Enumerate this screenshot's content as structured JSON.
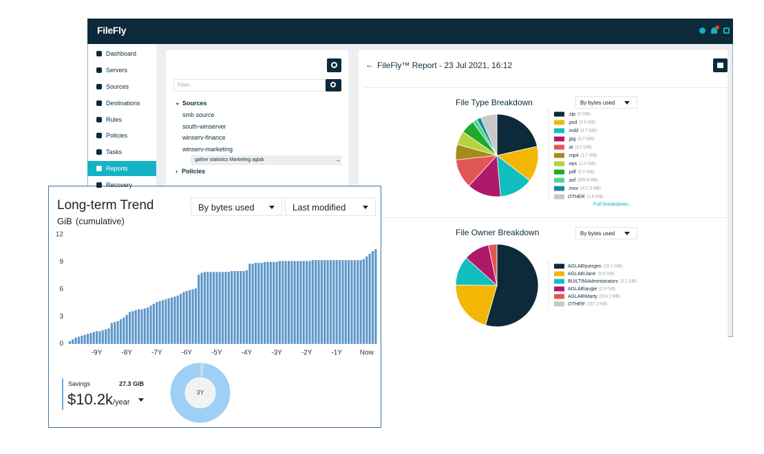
{
  "header": {
    "logo": "FileFly"
  },
  "sidebar": {
    "items": [
      "Dashboard",
      "Servers",
      "Sources",
      "Destinations",
      "Rules",
      "Policies",
      "Tasks",
      "Reports",
      "Recovery"
    ]
  },
  "tree": {
    "filter_placeholder": "Filter...",
    "sources_label": "Sources",
    "sources": [
      "smb source",
      "south-winserver",
      "winserv-finance",
      "winserv-marketing"
    ],
    "selected_task": "gather statistics Marketing aglab",
    "policies_label": "Policies"
  },
  "report": {
    "title": "FileFly™ Report - 23 Jul 2021, 16:12",
    "file_type": {
      "title": "File Type Breakdown",
      "dropdown": "By bytes used",
      "link": "Full breakdown...",
      "items": [
        {
          "name": ".zip",
          "value": 6,
          "value_label": "(6 GiB)",
          "color": "#0d2a3a"
        },
        {
          "name": ".psd",
          "value": 3.9,
          "value_label": "(3.9 GiB)",
          "color": "#f2b705"
        },
        {
          "name": ".indd",
          "value": 3.7,
          "value_label": "(3.7 GiB)",
          "color": "#12bfbf"
        },
        {
          "name": ".jpg",
          "value": 3.7,
          "value_label": "(3.7 GiB)",
          "color": "#b0186a"
        },
        {
          "name": ".ai",
          "value": 3.2,
          "value_label": "(3.2 GiB)",
          "color": "#e35656"
        },
        {
          "name": ".mp4",
          "value": 1.7,
          "value_label": "(1.7 GiB)",
          "color": "#a68a1c"
        },
        {
          "name": ".eps",
          "value": 1.5,
          "value_label": "(1.5 GiB)",
          "color": "#b5d43c"
        },
        {
          "name": ".pdf",
          "value": 1.5,
          "value_label": "(1.5 GiB)",
          "color": "#1fa82e"
        },
        {
          "name": ".asf",
          "value": 0.5039,
          "value_label": "(503.9 MB)",
          "color": "#4dd98a"
        },
        {
          "name": ".mov",
          "value": 0.4723,
          "value_label": "(472.3 MB)",
          "color": "#1a8a9e"
        },
        {
          "name": "OTHER",
          "value": 1.8,
          "value_label": "(1.8 GiB)",
          "color": "#c8c8c8"
        }
      ]
    },
    "file_owner": {
      "title": "File Owner Breakdown",
      "dropdown": "By bytes used",
      "items": [
        {
          "name": "AGLAB\\juergen",
          "value": 15.2,
          "value_label": "(15.2 GiB)",
          "color": "#0d2a3a"
        },
        {
          "name": "AGLAB\\Jane",
          "value": 5.8,
          "value_label": "(5.8 GiB)",
          "color": "#f2b705"
        },
        {
          "name": "BUILTIN\\Administrators",
          "value": 3.2,
          "value_label": "(3.2 GiB)",
          "color": "#12bfbf"
        },
        {
          "name": "AGLAB\\augie",
          "value": 2.8,
          "value_label": "(2.8 GiB)",
          "color": "#b0186a"
        },
        {
          "name": "AGLAB\\Marty",
          "value": 0.9242,
          "value_label": "(924.2 MB)",
          "color": "#e35656"
        },
        {
          "name": "OTHER",
          "value": 0.0001572,
          "value_label": "(157.2 KiB)",
          "color": "#c8c8c8"
        }
      ]
    }
  },
  "trend": {
    "title": "Long-term Trend",
    "unit": "GiB",
    "note": "(cumulative)",
    "dropdowns": [
      "By bytes used",
      "Last modified"
    ],
    "chart": {
      "type": "bar",
      "color": "#5e97c9",
      "x": [
        -9.9,
        -9.8,
        -9.7,
        -9.6,
        -9.5,
        -9.4,
        -9.3,
        -9.2,
        -9.1,
        -9,
        -8.9,
        -8.8,
        -8.7,
        -8.6,
        -8.5,
        -8.4,
        -8.3,
        -8.2,
        -8.1,
        -8,
        -7.9,
        -7.8,
        -7.7,
        -7.6,
        -7.5,
        -7.4,
        -7.3,
        -7.2,
        -7.1,
        -7,
        -6.9,
        -6.8,
        -6.7,
        -6.6,
        -6.5,
        -6.4,
        -6.3,
        -6.2,
        -6.1,
        -6,
        -5.9,
        -5.8,
        -5.7,
        -5.6,
        -5.5,
        -5.4,
        -5.3,
        -5.2,
        -5.1,
        -5,
        -4.9,
        -4.8,
        -4.7,
        -4.6,
        -4.5,
        -4.4,
        -4.3,
        -4.2,
        -4.1,
        -4,
        -3.9,
        -3.8,
        -3.7,
        -3.6,
        -3.5,
        -3.4,
        -3.3,
        -3.2,
        -3.1,
        -3,
        -2.9,
        -2.8,
        -2.7,
        -2.6,
        -2.5,
        -2.4,
        -2.3,
        -2.2,
        -2.1,
        -2,
        -1.9,
        -1.8,
        -1.7,
        -1.6,
        -1.5,
        -1.4,
        -1.3,
        -1.2,
        -1.1,
        -1,
        -0.9,
        -0.8,
        -0.7,
        -0.6,
        -0.5,
        -0.4,
        -0.3,
        -0.2,
        -0.1,
        0,
        0.1,
        0.2,
        0.3
      ],
      "values": [
        0.3,
        0.5,
        0.7,
        0.8,
        0.9,
        1.0,
        1.1,
        1.2,
        1.3,
        1.4,
        1.4,
        1.5,
        1.6,
        1.7,
        2.3,
        2.4,
        2.5,
        2.7,
        2.9,
        3.2,
        3.5,
        3.6,
        3.7,
        3.8,
        3.8,
        3.9,
        4.0,
        4.2,
        4.4,
        4.6,
        4.7,
        4.8,
        4.9,
        5.0,
        5.1,
        5.2,
        5.3,
        5.5,
        5.7,
        5.8,
        5.9,
        6.0,
        6.1,
        7.6,
        7.8,
        7.9,
        7.9,
        7.9,
        7.9,
        7.9,
        7.9,
        7.9,
        7.9,
        7.9,
        8.0,
        8.0,
        8.0,
        8.0,
        8.0,
        8.1,
        8.8,
        8.8,
        8.9,
        8.9,
        8.9,
        9.0,
        9.0,
        9.0,
        9.0,
        9.0,
        9.1,
        9.1,
        9.1,
        9.1,
        9.1,
        9.1,
        9.1,
        9.1,
        9.1,
        9.1,
        9.1,
        9.2,
        9.2,
        9.2,
        9.2,
        9.2,
        9.2,
        9.2,
        9.2,
        9.2,
        9.2,
        9.2,
        9.2,
        9.2,
        9.2,
        9.2,
        9.2,
        9.2,
        9.3,
        9.6,
        9.9,
        10.2,
        10.4
      ],
      "xlim": [
        -10,
        0.35
      ],
      "ylim": [
        0,
        12
      ],
      "yticks": [
        0,
        3,
        6,
        9,
        12
      ],
      "xticks": [
        {
          "value": -9,
          "label": "-9Y"
        },
        {
          "value": -8,
          "label": "-8Y"
        },
        {
          "value": -7,
          "label": "-7Y"
        },
        {
          "value": -6,
          "label": "-6Y"
        },
        {
          "value": -5,
          "label": "-5Y"
        },
        {
          "value": -4,
          "label": "-4Y"
        },
        {
          "value": -3,
          "label": "-3Y"
        },
        {
          "value": -2,
          "label": "-2Y"
        },
        {
          "value": -1,
          "label": "-1Y"
        },
        {
          "value": 0,
          "label": "Now"
        }
      ]
    },
    "savings": {
      "label": "Savings",
      "size": "27.3 GiB",
      "amount": "$10.2k",
      "unit": "/year"
    },
    "donut_label": "3Y"
  }
}
